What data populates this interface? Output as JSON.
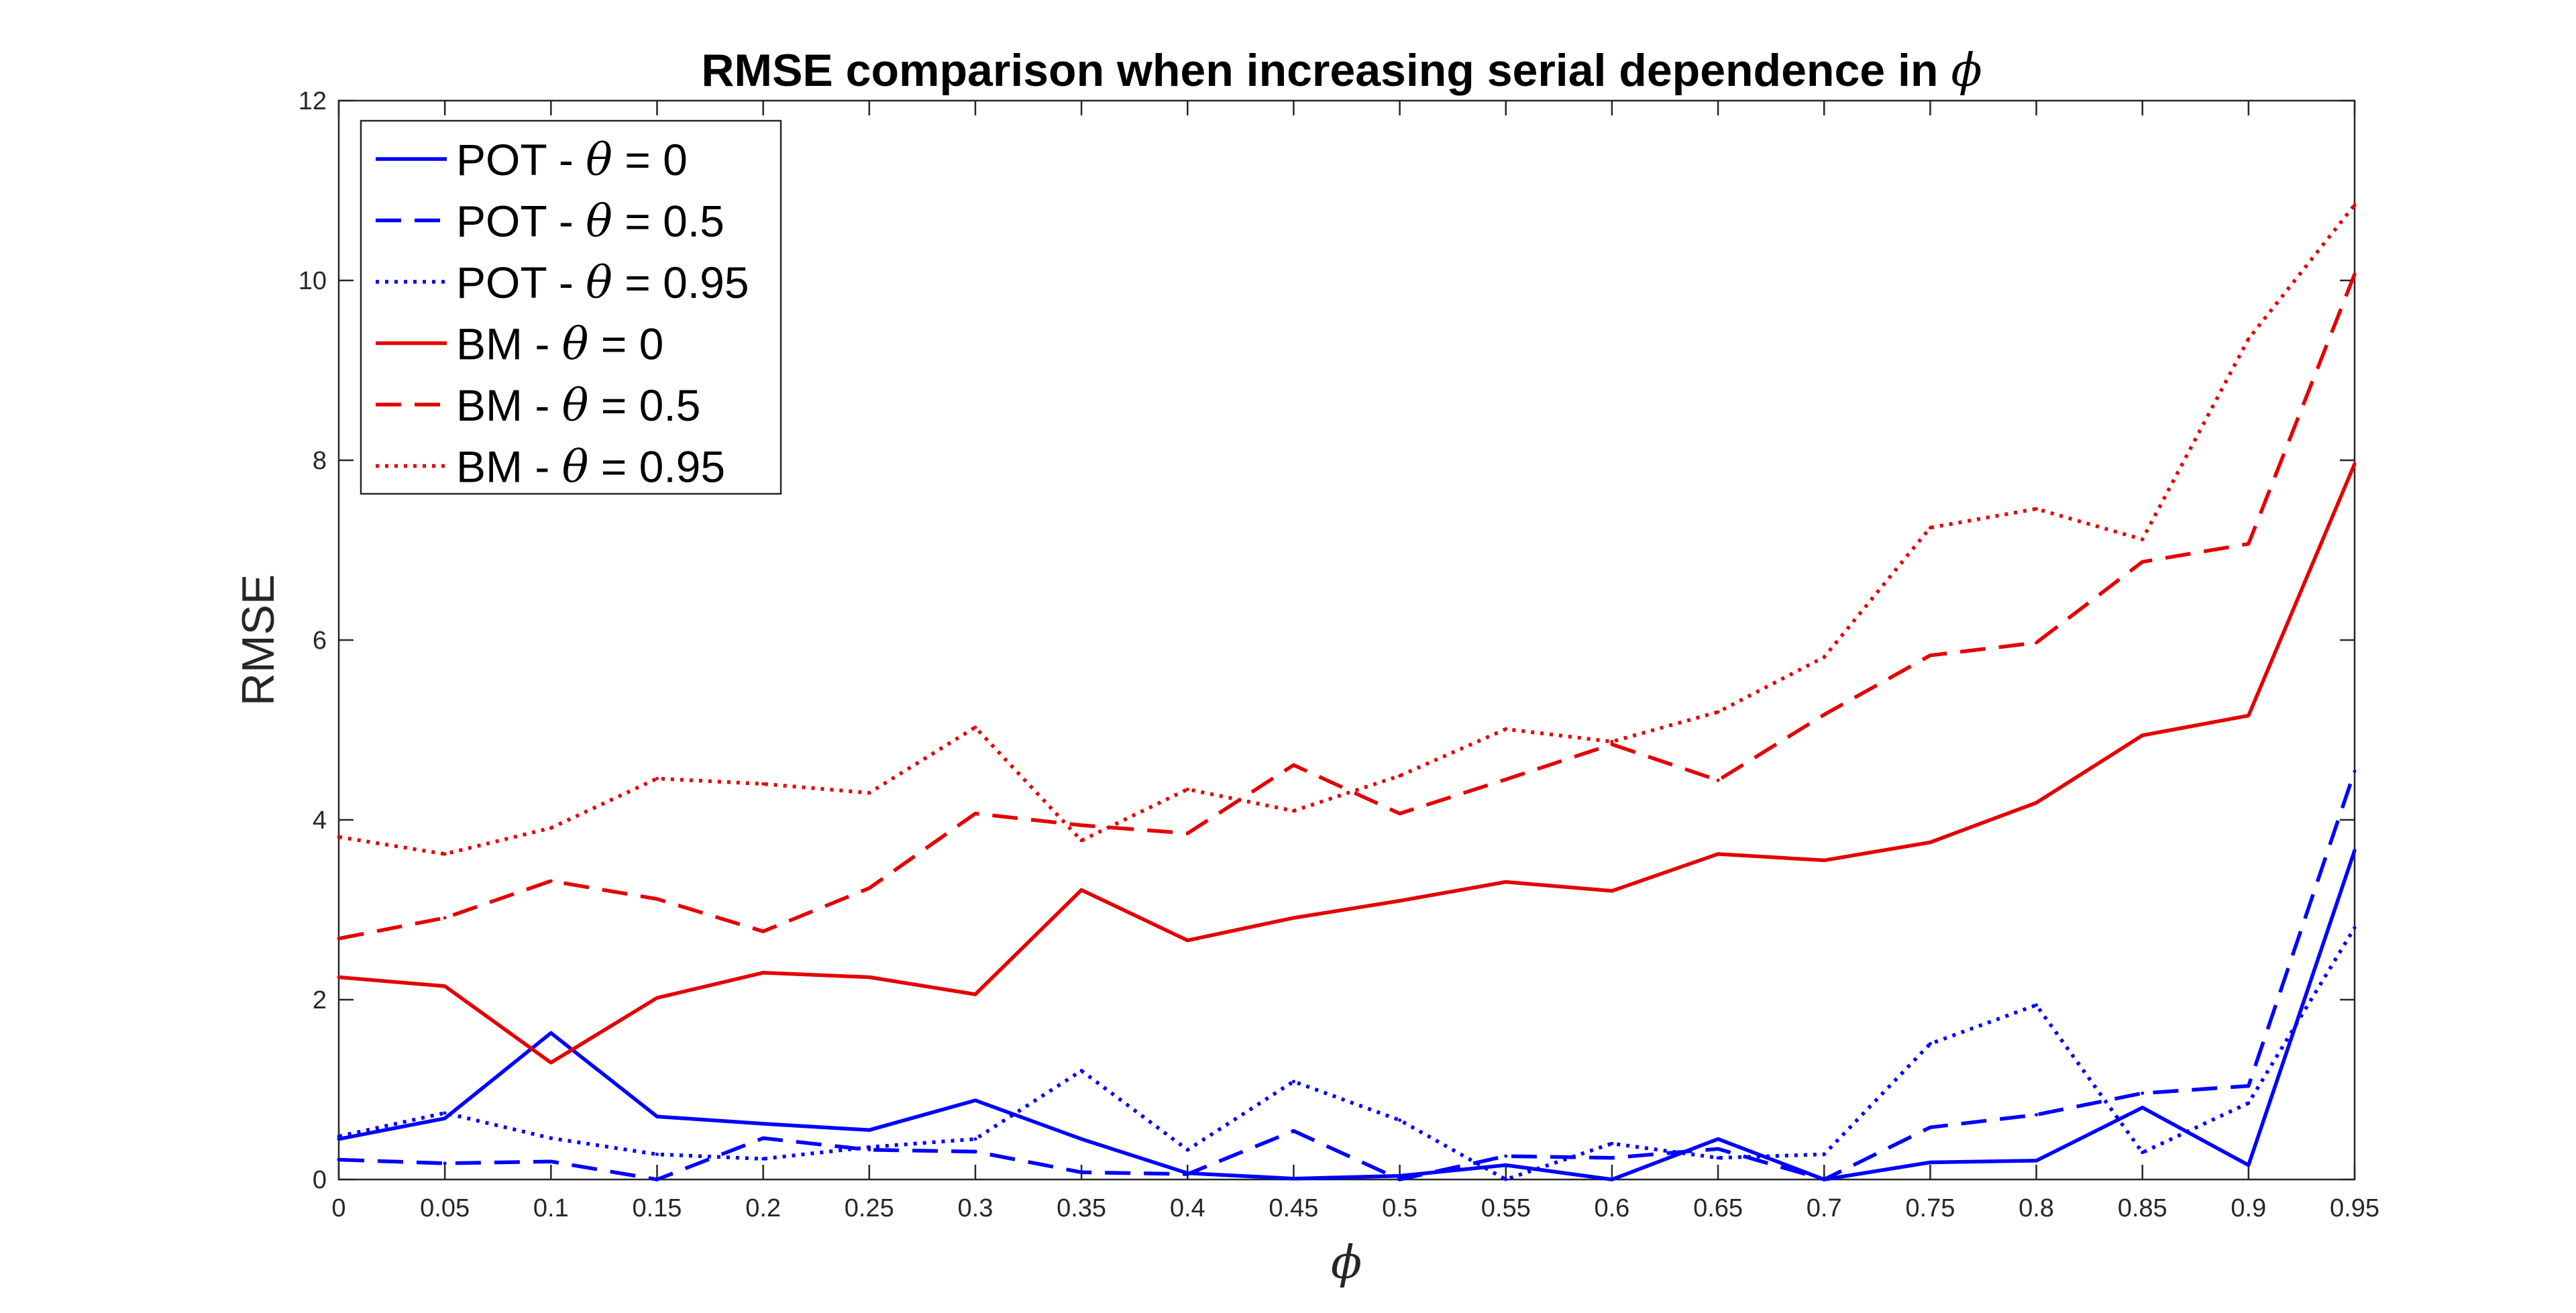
{
  "chart_data": {
    "type": "line",
    "title": "RMSE comparison when increasing serial dependence in",
    "title_symbol": "ϕ",
    "xlabel": "ϕ",
    "ylabel": "RMSE",
    "x": [
      0,
      0.05,
      0.1,
      0.15,
      0.2,
      0.25,
      0.3,
      0.35,
      0.4,
      0.45,
      0.5,
      0.55,
      0.6,
      0.65,
      0.7,
      0.75,
      0.8,
      0.85,
      0.9,
      0.95
    ],
    "x_tick_labels": [
      "0",
      "0.05",
      "0.1",
      "0.15",
      "0.2",
      "0.25",
      "0.3",
      "0.35",
      "0.4",
      "0.45",
      "0.5",
      "0.55",
      "0.6",
      "0.65",
      "0.7",
      "0.75",
      "0.8",
      "0.85",
      "0.9",
      "0.95"
    ],
    "xlim": [
      0,
      0.95
    ],
    "ylim": [
      0,
      12
    ],
    "y_ticks": [
      0,
      2,
      4,
      6,
      8,
      10,
      12
    ],
    "grid": false,
    "legend_position": "top-left",
    "series": [
      {
        "name_prefix": "POT - ",
        "name_symbol": "θ",
        "name_suffix": " = 0",
        "color": "#0000ff",
        "style": "solid",
        "values": [
          0.45,
          0.68,
          1.63,
          0.7,
          0.62,
          0.55,
          0.88,
          0.45,
          0.07,
          0.01,
          0.04,
          0.16,
          0.0,
          0.45,
          0.0,
          0.19,
          0.21,
          0.8,
          0.16,
          3.66
        ]
      },
      {
        "name_prefix": "POT - ",
        "name_symbol": "θ",
        "name_suffix": " = 0.5",
        "color": "#0000ff",
        "style": "dashed",
        "values": [
          0.22,
          0.18,
          0.2,
          0.0,
          0.46,
          0.33,
          0.31,
          0.08,
          0.06,
          0.54,
          0.0,
          0.26,
          0.24,
          0.34,
          0.0,
          0.58,
          0.72,
          0.96,
          1.04,
          4.54
        ]
      },
      {
        "name_prefix": "POT - ",
        "name_symbol": "θ",
        "name_suffix": " = 0.95",
        "color": "#0000ff",
        "style": "dotted",
        "values": [
          0.48,
          0.74,
          0.46,
          0.28,
          0.23,
          0.36,
          0.45,
          1.21,
          0.33,
          1.09,
          0.66,
          0.0,
          0.4,
          0.24,
          0.28,
          1.51,
          1.94,
          0.3,
          0.85,
          2.8
        ]
      },
      {
        "name_prefix": "BM - ",
        "name_symbol": "θ",
        "name_suffix": " = 0",
        "color": "#e50000",
        "style": "solid",
        "values": [
          2.25,
          2.15,
          1.3,
          2.02,
          2.3,
          2.25,
          2.06,
          3.22,
          2.66,
          2.91,
          3.1,
          3.31,
          3.21,
          3.62,
          3.55,
          3.75,
          4.19,
          4.94,
          5.16,
          7.96
        ]
      },
      {
        "name_prefix": "BM - ",
        "name_symbol": "θ",
        "name_suffix": " = 0.5",
        "color": "#e50000",
        "style": "dashed",
        "values": [
          2.68,
          2.91,
          3.32,
          3.12,
          2.76,
          3.24,
          4.07,
          3.94,
          3.85,
          4.61,
          4.07,
          4.45,
          4.84,
          4.44,
          5.17,
          5.83,
          5.97,
          6.87,
          7.07,
          10.07
        ]
      },
      {
        "name_prefix": "BM - ",
        "name_symbol": "θ",
        "name_suffix": " = 0.95",
        "color": "#e50000",
        "style": "dotted",
        "values": [
          3.81,
          3.62,
          3.91,
          4.46,
          4.4,
          4.3,
          5.03,
          3.77,
          4.34,
          4.1,
          4.49,
          5.01,
          4.87,
          5.2,
          5.81,
          7.25,
          7.46,
          7.12,
          9.35,
          10.84
        ]
      }
    ]
  }
}
